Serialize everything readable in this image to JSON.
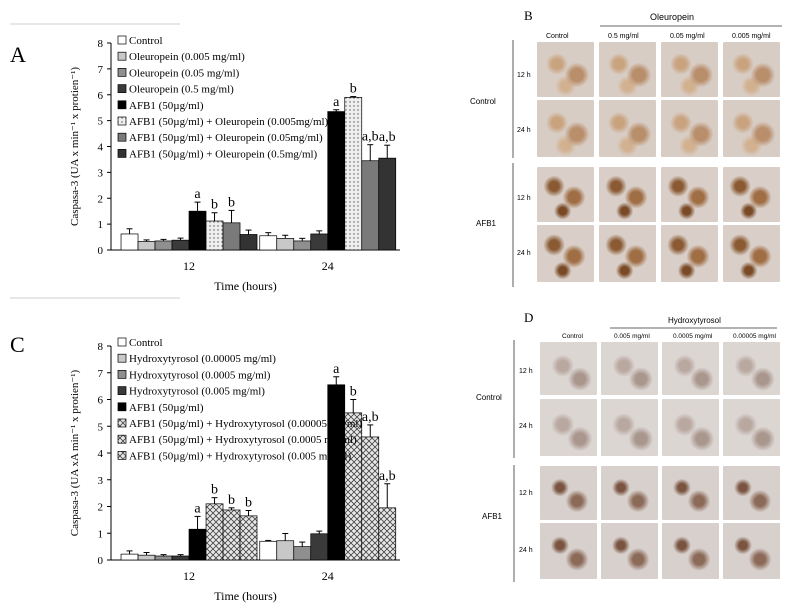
{
  "panel_letters": {
    "a": "A",
    "b": "B",
    "c": "C",
    "d": "D"
  },
  "micro_b": {
    "group": "Oleuropein",
    "columns": [
      "Control",
      "0.5 mg/ml",
      "0.05 mg/ml",
      "0.005 mg/ml"
    ],
    "rows": [
      "12 h",
      "24 h",
      "12 h",
      "24 h"
    ],
    "row_groups": [
      "Control",
      "AFB1"
    ]
  },
  "micro_d": {
    "group": "Hydroxytyrosol",
    "columns": [
      "Control",
      "0.005 mg/ml",
      "0.0005 mg/ml",
      "0.00005 mg/ml"
    ],
    "rows": [
      "12 h",
      "24 h",
      "12 h",
      "24 h"
    ],
    "row_groups": [
      "Control",
      "AFB1"
    ]
  },
  "chart_data": [
    {
      "type": "bar",
      "panel": "A",
      "title": "",
      "xlabel": "Time (hours)",
      "ylabel": "Caspasa-3 (UA x min⁻¹ x protien⁻¹)",
      "ylim": [
        0,
        8
      ],
      "yticks": [
        0,
        1,
        2,
        3,
        4,
        5,
        6,
        7,
        8
      ],
      "categories": [
        "12",
        "24"
      ],
      "series": [
        {
          "name": "Control",
          "values": [
            0.62,
            0.55
          ],
          "errors": [
            0.2,
            0.12
          ],
          "labels": [
            "",
            ""
          ],
          "fill": "#ffffff"
        },
        {
          "name": "Oleuropein (0.005 mg/ml)",
          "values": [
            0.33,
            0.45
          ],
          "errors": [
            0.06,
            0.12
          ],
          "labels": [
            "",
            ""
          ],
          "fill": "#c8c8c8"
        },
        {
          "name": "Oleuropein (0.05 mg/ml)",
          "values": [
            0.35,
            0.35
          ],
          "errors": [
            0.06,
            0.1
          ],
          "labels": [
            "",
            ""
          ],
          "fill": "#8f8f8f"
        },
        {
          "name": "Oleuropein (0.5 mg/ml)",
          "values": [
            0.38,
            0.62
          ],
          "errors": [
            0.08,
            0.12
          ],
          "labels": [
            "",
            ""
          ],
          "fill": "#3a3a3a"
        },
        {
          "name": "AFB1 (50µg/ml)",
          "values": [
            1.5,
            5.35
          ],
          "errors": [
            0.35,
            0.07
          ],
          "labels": [
            "a",
            "a"
          ],
          "fill": "#000000"
        },
        {
          "name": "AFB1 (50µg/ml) + Oleuropein (0.005mg/ml)",
          "values": [
            1.12,
            5.9
          ],
          "errors": [
            0.32,
            0.03
          ],
          "labels": [
            "b",
            "b"
          ],
          "fill": "#e6e6e6",
          "pattern": "dots"
        },
        {
          "name": "AFB1 (50µg/ml) + Oleuropein (0.05mg/ml)",
          "values": [
            1.05,
            3.45
          ],
          "errors": [
            0.48,
            0.62
          ],
          "labels": [
            "b",
            "a,b"
          ],
          "fill": "#7a7a7a"
        },
        {
          "name": "AFB1 (50µg/ml) + Oleuropein (0.5mg/ml)",
          "values": [
            0.6,
            3.55
          ],
          "errors": [
            0.17,
            0.5
          ],
          "labels": [
            "",
            "a,b"
          ],
          "fill": "#333333"
        }
      ]
    },
    {
      "type": "bar",
      "panel": "C",
      "title": "",
      "xlabel": "Time (hours)",
      "ylabel": "Caspasa-3 (UA xA min⁻¹ x protien⁻¹)",
      "ylim": [
        0,
        8
      ],
      "yticks": [
        0,
        1,
        2,
        3,
        4,
        5,
        6,
        7,
        8
      ],
      "categories": [
        "12",
        "24"
      ],
      "series": [
        {
          "name": "Control",
          "values": [
            0.22,
            0.7
          ],
          "errors": [
            0.12,
            0.03
          ],
          "labels": [
            "",
            ""
          ],
          "fill": "#ffffff"
        },
        {
          "name": "Hydroxytyrosol (0.00005 mg/ml)",
          "values": [
            0.18,
            0.72
          ],
          "errors": [
            0.1,
            0.27
          ],
          "labels": [
            "",
            ""
          ],
          "fill": "#c8c8c8"
        },
        {
          "name": "Hydroxytyrosol (0.0005 mg/ml)",
          "values": [
            0.15,
            0.5
          ],
          "errors": [
            0.05,
            0.17
          ],
          "labels": [
            "",
            ""
          ],
          "fill": "#8f8f8f"
        },
        {
          "name": "Hydroxytyrosol (0.005 mg/ml)",
          "values": [
            0.15,
            0.98
          ],
          "errors": [
            0.05,
            0.1
          ],
          "labels": [
            "",
            ""
          ],
          "fill": "#3a3a3a"
        },
        {
          "name": "AFB1 (50µg/ml)",
          "values": [
            1.15,
            6.55
          ],
          "errors": [
            0.48,
            0.3
          ],
          "labels": [
            "a",
            "a"
          ],
          "fill": "#000000"
        },
        {
          "name": "AFB1 (50µg/ml) + Hydroxytyrosol (0.00005 mg/ml)",
          "values": [
            2.1,
            5.5
          ],
          "errors": [
            0.23,
            0.5
          ],
          "labels": [
            "b",
            "b"
          ],
          "fill": "#e0e0e0",
          "pattern": "crosshatch"
        },
        {
          "name": "AFB1 (50µg/ml) + Hydroxytyrosol (0.0005 mg/ml)",
          "values": [
            1.87,
            4.6
          ],
          "errors": [
            0.08,
            0.45
          ],
          "labels": [
            "b",
            "a,b"
          ],
          "fill": "#bdbdbd",
          "pattern": "crosshatch"
        },
        {
          "name": "AFB1 (50µg/ml) + Hydroxytyrosol (0.005 mg/ml)",
          "values": [
            1.65,
            1.95
          ],
          "errors": [
            0.2,
            0.9
          ],
          "labels": [
            "b",
            "a,b"
          ],
          "fill": "#9a9a9a",
          "pattern": "crosshatch"
        }
      ]
    }
  ]
}
